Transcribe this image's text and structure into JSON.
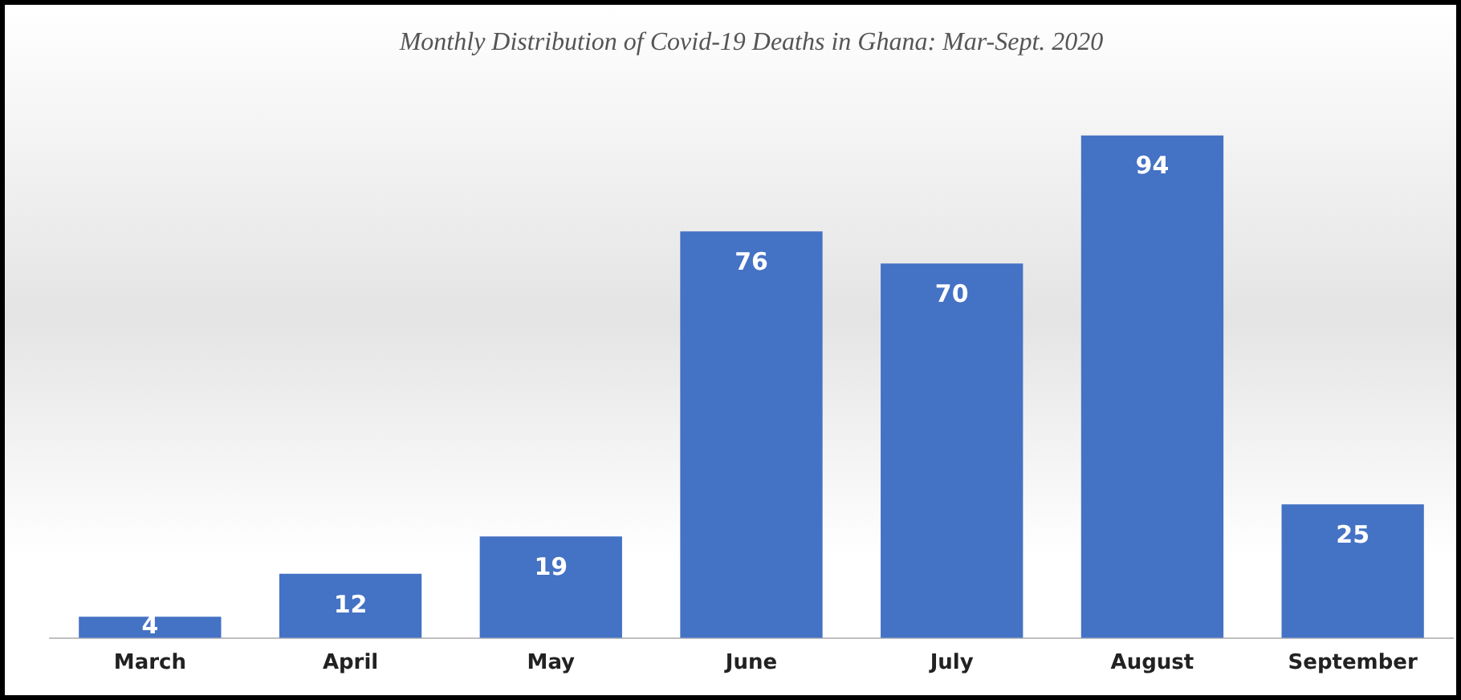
{
  "chart_data": {
    "type": "bar",
    "title": "Monthly Distribution of Covid-19 Deaths in Ghana: Mar-Sept. 2020",
    "categories": [
      "March",
      "April",
      "May",
      "June",
      "July",
      "August",
      "September"
    ],
    "values": [
      4,
      12,
      19,
      76,
      70,
      94,
      25
    ],
    "color": "#4472c4",
    "data_labels": true,
    "grid": false,
    "legend": false
  }
}
